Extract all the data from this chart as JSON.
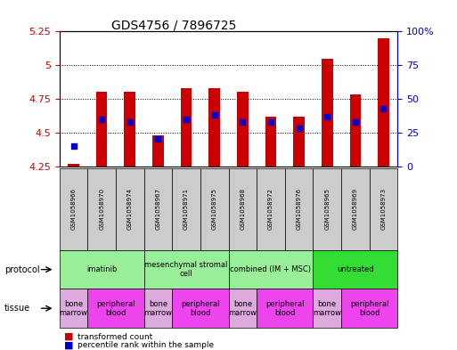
{
  "title": "GDS4756 / 7896725",
  "samples": [
    "GSM1058966",
    "GSM1058970",
    "GSM1058974",
    "GSM1058967",
    "GSM1058971",
    "GSM1058975",
    "GSM1058968",
    "GSM1058972",
    "GSM1058976",
    "GSM1058965",
    "GSM1058969",
    "GSM1058973"
  ],
  "bar_values": [
    4.27,
    4.8,
    4.8,
    4.48,
    4.83,
    4.83,
    4.8,
    4.62,
    4.62,
    5.05,
    4.78,
    5.2
  ],
  "dot_percentiles": [
    15,
    35,
    33,
    20,
    35,
    38,
    33,
    33,
    28,
    37,
    33,
    43
  ],
  "ylim_left": [
    4.25,
    5.25
  ],
  "ylim_right": [
    0,
    100
  ],
  "yticks_left": [
    4.25,
    4.5,
    4.75,
    5.0,
    5.25
  ],
  "yticks_right": [
    0,
    25,
    50,
    75,
    100
  ],
  "ytick_labels_left": [
    "4.25",
    "4.5",
    "4.75",
    "5",
    "5.25"
  ],
  "ytick_labels_right": [
    "0",
    "25",
    "50",
    "75",
    "100%"
  ],
  "bar_color": "#cc0000",
  "dot_color": "#0000cc",
  "bar_bottom": 4.25,
  "protocols": [
    {
      "label": "imatinib",
      "start": 0,
      "end": 3,
      "color": "#99ee99"
    },
    {
      "label": "mesenchymal stromal\ncell",
      "start": 3,
      "end": 6,
      "color": "#99ee99"
    },
    {
      "label": "combined (IM + MSC)",
      "start": 6,
      "end": 9,
      "color": "#99ee99"
    },
    {
      "label": "untreated",
      "start": 9,
      "end": 12,
      "color": "#33dd33"
    }
  ],
  "tissues": [
    {
      "label": "bone\nmarrow",
      "start": 0,
      "end": 1,
      "color": "#ddaadd"
    },
    {
      "label": "peripheral\nblood",
      "start": 1,
      "end": 3,
      "color": "#ee44ee"
    },
    {
      "label": "bone\nmarrow",
      "start": 3,
      "end": 4,
      "color": "#ddaadd"
    },
    {
      "label": "peripheral\nblood",
      "start": 4,
      "end": 6,
      "color": "#ee44ee"
    },
    {
      "label": "bone\nmarrow",
      "start": 6,
      "end": 7,
      "color": "#ddaadd"
    },
    {
      "label": "peripheral\nblood",
      "start": 7,
      "end": 9,
      "color": "#ee44ee"
    },
    {
      "label": "bone\nmarrow",
      "start": 9,
      "end": 10,
      "color": "#ddaadd"
    },
    {
      "label": "peripheral\nblood",
      "start": 10,
      "end": 12,
      "color": "#ee44ee"
    }
  ],
  "left_axis_color": "#cc0000",
  "right_axis_color": "#0000cc",
  "protocol_label": "protocol",
  "tissue_label": "tissue",
  "legend1": "transformed count",
  "legend2": "percentile rank within the sample"
}
